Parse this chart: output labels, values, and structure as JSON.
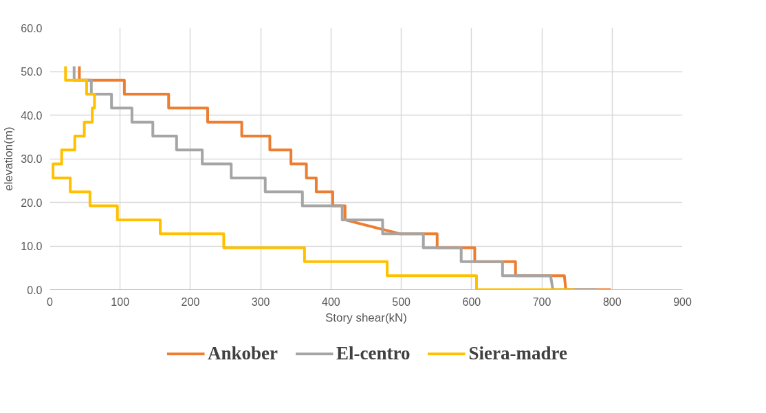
{
  "chart_data": {
    "type": "line",
    "xlabel": "Story shear(kN)",
    "ylabel": "elevation(m)",
    "xlim": [
      0,
      900
    ],
    "xticks": [
      0,
      100,
      200,
      300,
      400,
      500,
      600,
      700,
      800,
      900
    ],
    "ylim": [
      0,
      60
    ],
    "yticks": [
      {
        "value": 0,
        "label": "0.0"
      },
      {
        "value": 10,
        "label": "10.0"
      },
      {
        "value": 20,
        "label": "20.0"
      },
      {
        "value": 30,
        "label": "30.0"
      },
      {
        "value": 40,
        "label": "40.0"
      },
      {
        "value": 50,
        "label": "50.0"
      },
      {
        "value": 60,
        "label": "60.0"
      }
    ],
    "grid": true,
    "legend": "bottom",
    "marker": "none",
    "line_style": "solid",
    "series": [
      {
        "name": "Ankober",
        "color": "#ed7d31",
        "x": [
          42,
          42,
          106,
          106,
          169,
          169,
          224.5,
          224.5,
          273,
          273,
          313,
          313,
          343,
          343,
          365,
          365,
          379,
          379,
          402.5,
          402.5,
          420,
          420,
          498,
          551,
          551,
          604.5,
          604.5,
          662.5,
          662.5,
          732,
          734,
          798
        ],
        "values": [
          51.2,
          48,
          48,
          44.8,
          44.8,
          41.6,
          41.6,
          38.4,
          38.4,
          35.2,
          35.2,
          32,
          32,
          28.8,
          28.8,
          25.6,
          25.6,
          22.4,
          22.4,
          19.2,
          19.2,
          16,
          12.8,
          12.8,
          9.6,
          9.6,
          6.4,
          6.4,
          3.2,
          3.2,
          0,
          0
        ]
      },
      {
        "name": "El-centro",
        "color": "#a5a5a5",
        "x": [
          34.5,
          34.5,
          59,
          59,
          87.7,
          87.7,
          116.8,
          116.8,
          146.5,
          146.5,
          180.3,
          180.3,
          216.8,
          216.8,
          258,
          258,
          306.4,
          306.4,
          359.3,
          359.3,
          416,
          416,
          473.4,
          473.4,
          531.4,
          531.4,
          585.2,
          585.2,
          644,
          644,
          712.4,
          715.6,
          778.4
        ],
        "values": [
          51.2,
          48,
          48,
          44.8,
          44.8,
          41.6,
          41.6,
          38.4,
          38.4,
          35.2,
          35.2,
          32,
          32,
          28.8,
          28.8,
          25.6,
          25.6,
          22.4,
          22.4,
          19.2,
          19.2,
          16,
          16,
          12.8,
          12.8,
          9.6,
          9.6,
          6.4,
          6.4,
          3.2,
          3.2,
          0,
          0
        ]
      },
      {
        "name": "Siera-madre",
        "color": "#ffc000",
        "x": [
          22.3,
          22.3,
          52.3,
          52.3,
          63.5,
          63.5,
          60.3,
          60.3,
          49,
          49,
          35.5,
          35.5,
          16.8,
          16.8,
          4.5,
          4.5,
          29,
          29,
          57.1,
          57.1,
          96.1,
          96.1,
          157,
          157,
          247.4,
          247.4,
          362.3,
          362.3,
          479.9,
          479.9,
          607,
          607,
          746.2
        ],
        "values": [
          51.2,
          48,
          48,
          44.8,
          44.8,
          41.6,
          41.6,
          38.4,
          38.4,
          35.2,
          35.2,
          32,
          32,
          28.8,
          28.8,
          25.6,
          25.6,
          22.4,
          22.4,
          19.2,
          19.2,
          16,
          16,
          12.8,
          12.8,
          9.6,
          9.6,
          6.4,
          6.4,
          3.2,
          3.2,
          0,
          0
        ]
      }
    ]
  }
}
